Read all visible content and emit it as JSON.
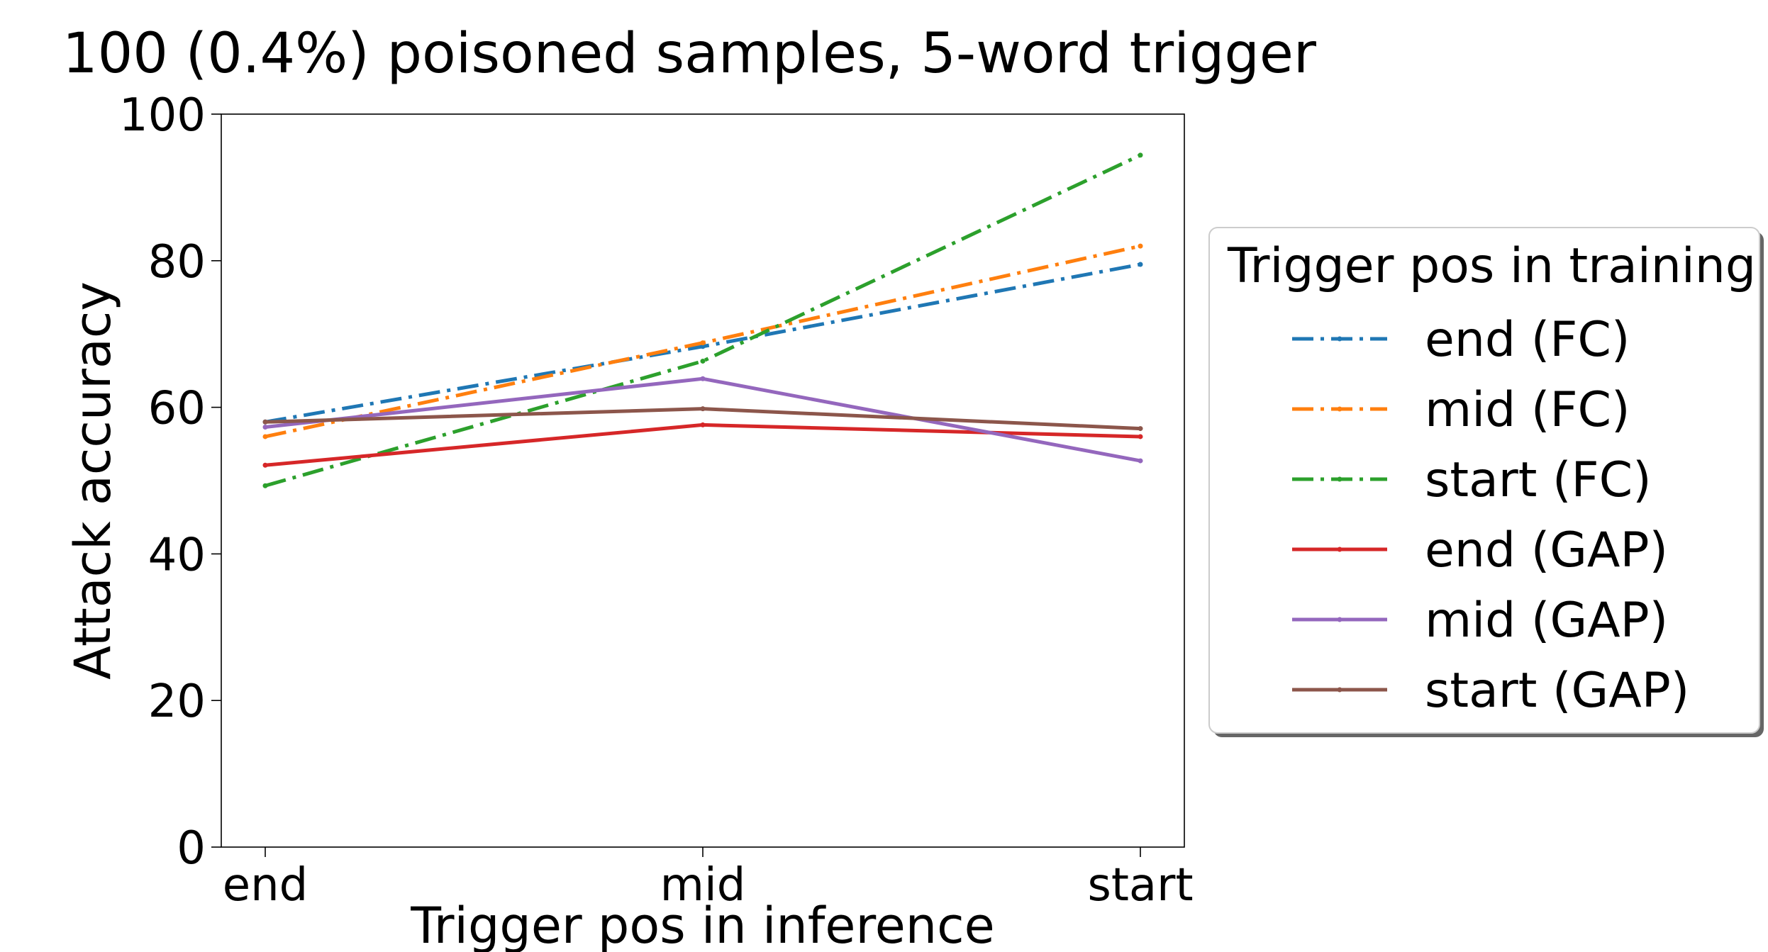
{
  "chart_data": {
    "type": "line",
    "title": "100 (0.4%) poisoned samples, 5-word trigger",
    "xlabel": "Trigger pos in inference",
    "ylabel": "Attack accuracy",
    "categories": [
      "end",
      "mid",
      "start"
    ],
    "ylim": [
      0,
      100
    ],
    "yticks": [
      0,
      20,
      40,
      60,
      80,
      100
    ],
    "grid": false,
    "legend": {
      "title": "Trigger pos in training",
      "placement": "right, outside plot"
    },
    "series": [
      {
        "name": "end (FC)",
        "values": [
          58.0,
          68.3,
          79.5
        ],
        "color": "#1f77b4",
        "style": "dashdot"
      },
      {
        "name": "mid (FC)",
        "values": [
          56.0,
          68.8,
          82.0
        ],
        "color": "#ff7f0e",
        "style": "dashdot"
      },
      {
        "name": "start (FC)",
        "values": [
          49.3,
          66.3,
          94.4
        ],
        "color": "#2ca02c",
        "style": "dashdot"
      },
      {
        "name": "end (GAP)",
        "values": [
          52.1,
          57.6,
          56.0
        ],
        "color": "#d62728",
        "style": "solid"
      },
      {
        "name": "mid (GAP)",
        "values": [
          57.3,
          63.9,
          52.7
        ],
        "color": "#9467bd",
        "style": "solid"
      },
      {
        "name": "start (GAP)",
        "values": [
          58.0,
          59.8,
          57.1
        ],
        "color": "#8c564b",
        "style": "solid"
      }
    ]
  }
}
